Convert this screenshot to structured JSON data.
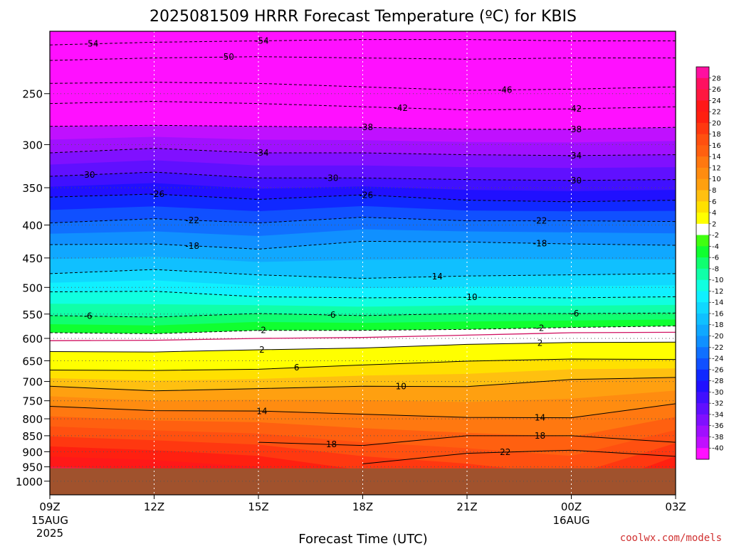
{
  "chart_data": {
    "type": "heatmap",
    "title": "2025081509 HRRR Forecast Temperature (ºC) for KBIS",
    "xlabel": "Forecast Time (UTC)",
    "ylabel": "",
    "credit": "coolwx.com/models",
    "x_ticks": [
      {
        "hour": 0,
        "label": "09Z",
        "sub1": "15AUG",
        "sub2": "2025"
      },
      {
        "hour": 3,
        "label": "12Z",
        "sub1": "",
        "sub2": ""
      },
      {
        "hour": 6,
        "label": "15Z",
        "sub1": "",
        "sub2": ""
      },
      {
        "hour": 9,
        "label": "18Z",
        "sub1": "",
        "sub2": ""
      },
      {
        "hour": 12,
        "label": "21Z",
        "sub1": "",
        "sub2": ""
      },
      {
        "hour": 15,
        "label": "00Z",
        "sub1": "16AUG",
        "sub2": ""
      },
      {
        "hour": 18,
        "label": "03Z",
        "sub1": "",
        "sub2": ""
      }
    ],
    "xlim": [
      0,
      18
    ],
    "y_ticks": [
      "250",
      "300",
      "350",
      "400",
      "450",
      "500",
      "550",
      "600",
      "650",
      "700",
      "750",
      "800",
      "850",
      "900",
      "950",
      "1000"
    ],
    "ylim_hpa": [
      200,
      1050
    ],
    "y_scale": "log",
    "surface_pressure_hpa": 955,
    "colorbar": {
      "levels": [
        "28",
        "26",
        "24",
        "22",
        "20",
        "18",
        "16",
        "14",
        "12",
        "10",
        "8",
        "6",
        "4",
        "2",
        "-2",
        "-4",
        "-6",
        "-8",
        "-10",
        "-12",
        "-14",
        "-16",
        "-18",
        "-20",
        "-22",
        "-24",
        "-26",
        "-28",
        "-30",
        "-32",
        "-34",
        "-36",
        "-38",
        "-40"
      ],
      "colors": [
        "#ff10a0",
        "#ff1060",
        "#ff1840",
        "#ff1818",
        "#ff2010",
        "#ff3810",
        "#ff5010",
        "#ff6010",
        "#ff7810",
        "#ff8c10",
        "#ffa010",
        "#ffc010",
        "#ffe000",
        "#ffff00",
        "#ffffff",
        "#40ff10",
        "#10ff30",
        "#10ff70",
        "#10ffa8",
        "#10ffe0",
        "#10f0ff",
        "#10d8ff",
        "#10c0ff",
        "#10a8ff",
        "#1090ff",
        "#1070ff",
        "#1050ff",
        "#1028ff",
        "#2010ff",
        "#4010ff",
        "#6010ff",
        "#8010ff",
        "#a010ff",
        "#c010ff",
        "#ff10ff"
      ]
    },
    "isotherms": [
      {
        "temp": -54,
        "pressure": [
          210,
          208,
          207,
          206,
          206,
          207,
          207
        ],
        "labels": [
          {
            "text": "-54",
            "hour": 1.2
          },
          {
            "text": "-54",
            "hour": 6.1
          }
        ]
      },
      {
        "temp": -50,
        "pressure": [
          222,
          220,
          219,
          220,
          221,
          220,
          220
        ],
        "labels": [
          {
            "text": "-50",
            "hour": 5.1
          }
        ]
      },
      {
        "temp": -46,
        "pressure": [
          241,
          240,
          241,
          244,
          247,
          246,
          244
        ],
        "labels": [
          {
            "text": "-46",
            "hour": 13.1
          }
        ]
      },
      {
        "temp": -42,
        "pressure": [
          259,
          257,
          259,
          262,
          265,
          264,
          262
        ],
        "labels": [
          {
            "text": "-42",
            "hour": 10.1
          },
          {
            "text": "-42",
            "hour": 15.1
          }
        ]
      },
      {
        "temp": -38,
        "pressure": [
          281,
          280,
          281,
          282,
          284,
          284,
          282
        ],
        "labels": [
          {
            "text": "-38",
            "hour": 9.1
          },
          {
            "text": "-38",
            "hour": 15.1
          }
        ]
      },
      {
        "temp": -34,
        "pressure": [
          309,
          304,
          309,
          309,
          311,
          312,
          311
        ],
        "labels": [
          {
            "text": "-34",
            "hour": 6.1
          },
          {
            "text": "-34",
            "hour": 15.1
          }
        ]
      },
      {
        "temp": -30,
        "pressure": [
          336,
          331,
          338,
          338,
          340,
          341,
          340
        ],
        "labels": [
          {
            "text": "-30",
            "hour": 1.1
          },
          {
            "text": "-30",
            "hour": 8.1
          },
          {
            "text": "-30",
            "hour": 15.1
          }
        ]
      },
      {
        "temp": -26,
        "pressure": [
          362,
          358,
          365,
          359,
          366,
          368,
          366
        ],
        "labels": [
          {
            "text": "-26",
            "hour": 3.1
          },
          {
            "text": "-26",
            "hour": 9.1
          }
        ]
      },
      {
        "temp": -22,
        "pressure": [
          397,
          391,
          397,
          389,
          394,
          394,
          395
        ],
        "labels": [
          {
            "text": "-22",
            "hour": 4.1
          },
          {
            "text": "-22",
            "hour": 14.1
          }
        ]
      },
      {
        "temp": -18,
        "pressure": [
          429,
          428,
          436,
          424,
          425,
          428,
          430
        ],
        "labels": [
          {
            "text": "-18",
            "hour": 4.1
          },
          {
            "text": "-18",
            "hour": 14.1
          }
        ]
      },
      {
        "temp": -14,
        "pressure": [
          476,
          469,
          478,
          484,
          480,
          478,
          476
        ],
        "labels": [
          {
            "text": "-14",
            "hour": 11.1
          }
        ]
      },
      {
        "temp": -10,
        "pressure": [
          508,
          507,
          517,
          519,
          518,
          519,
          517
        ],
        "labels": [
          {
            "text": "-10",
            "hour": 12.1
          }
        ]
      },
      {
        "temp": -6,
        "pressure": [
          553,
          556,
          549,
          553,
          549,
          549,
          548
        ],
        "labels": [
          {
            "text": "-6",
            "hour": 1.1
          },
          {
            "text": "-6",
            "hour": 8.1
          },
          {
            "text": "-6",
            "hour": 15.1
          }
        ]
      },
      {
        "temp": -2,
        "pressure": [
          588,
          590,
          583,
          583,
          581,
          577,
          574
        ],
        "labels": [
          {
            "text": "-2",
            "hour": 6.1
          },
          {
            "text": "-2",
            "hour": 14.1
          }
        ]
      },
      {
        "temp": 0,
        "pressure": [
          605,
          604,
          600,
          598,
          593,
          588,
          587
        ],
        "labels": []
      },
      {
        "temp": 2,
        "pressure": [
          629,
          630,
          625,
          621,
          613,
          609,
          608
        ],
        "labels": [
          {
            "text": "2",
            "hour": 6.1
          },
          {
            "text": "2",
            "hour": 14.1
          }
        ]
      },
      {
        "temp": 6,
        "pressure": [
          672,
          673,
          670,
          660,
          651,
          646,
          647
        ],
        "labels": [
          {
            "text": "6",
            "hour": 7.1
          }
        ]
      },
      {
        "temp": 10,
        "pressure": [
          712,
          724,
          718,
          712,
          713,
          695,
          690
        ],
        "labels": [
          {
            "text": "10",
            "hour": 10.1
          }
        ]
      },
      {
        "temp": 14,
        "pressure": [
          765,
          777,
          778,
          787,
          796,
          797,
          758
        ],
        "labels": [
          {
            "text": "14",
            "hour": 6.1
          },
          {
            "text": "14",
            "hour": 14.1
          }
        ]
      },
      {
        "temp": 18,
        "pressure": [
          null,
          null,
          870,
          880,
          850,
          850,
          870
        ],
        "labels": [
          {
            "text": "18",
            "hour": 8.1
          },
          {
            "text": "18",
            "hour": 14.1
          }
        ]
      },
      {
        "temp": 22,
        "pressure": [
          null,
          null,
          null,
          940,
          905,
          895,
          915
        ],
        "labels": [
          {
            "text": "22",
            "hour": 13.1
          }
        ]
      }
    ]
  }
}
